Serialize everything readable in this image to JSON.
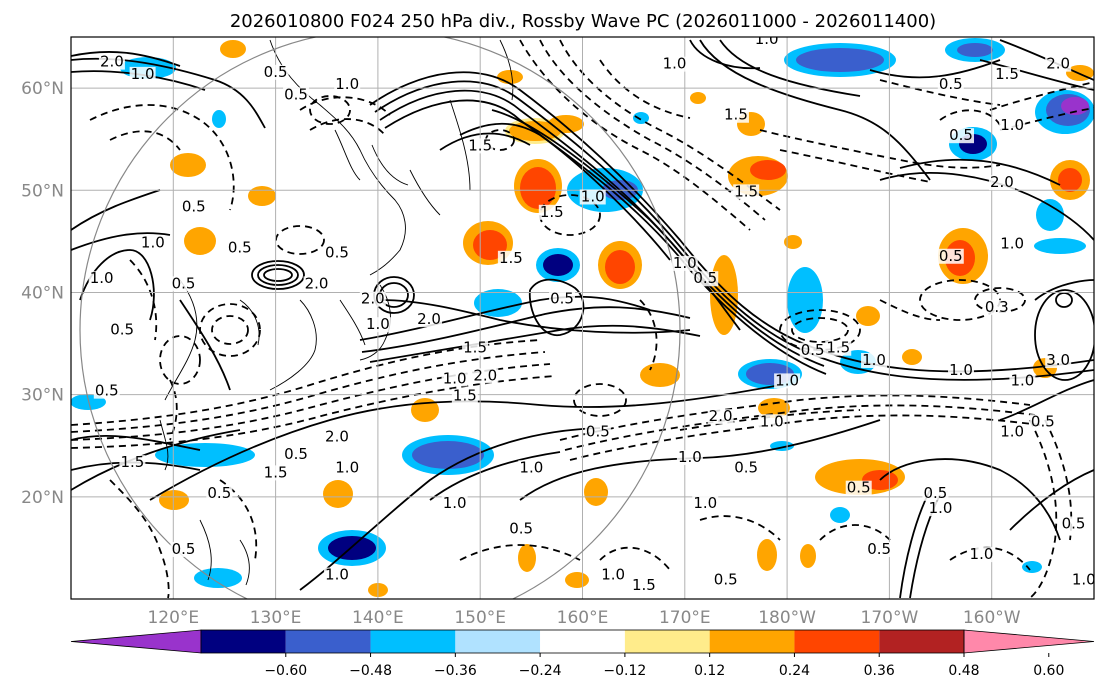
{
  "title": "2026010800 F024 250 hPa div., Rossby Wave PC (2026011000 - 2026011400)",
  "map": {
    "lon_range": [
      110,
      210
    ],
    "lat_range": [
      10,
      65
    ],
    "lon_ticks": [
      120,
      130,
      140,
      150,
      160,
      170,
      180,
      190,
      200
    ],
    "lon_labels": [
      "120°E",
      "130°E",
      "140°E",
      "150°E",
      "160°E",
      "170°E",
      "180°W",
      "170°W",
      "160°W"
    ],
    "lat_ticks": [
      20,
      30,
      40,
      50,
      60
    ],
    "lat_labels": [
      "20°N",
      "30°N",
      "40°N",
      "50°N",
      "60°N"
    ],
    "gridline_color": "#b0b0b0",
    "tick_label_color": "#888888"
  },
  "colorbar": {
    "colors": [
      "#9933cc",
      "#000080",
      "#3a5fcd",
      "#00bfff",
      "#b0e2ff",
      "#ffffff",
      "#ffec8b",
      "#ffa500",
      "#ff4500",
      "#b22222",
      "#ff88aa"
    ],
    "tick_labels": [
      "−0.60",
      "−0.48",
      "−0.36",
      "−0.24",
      "−0.12",
      "0.12",
      "0.24",
      "0.36",
      "0.48",
      "0.60"
    ]
  },
  "contour_labels": [
    {
      "text": "2.0",
      "lon": 114.0,
      "lat": 62.2
    },
    {
      "text": "1.0",
      "lon": 117.0,
      "lat": 61.0
    },
    {
      "text": "0.5",
      "lon": 130.0,
      "lat": 61.2
    },
    {
      "text": "0.5",
      "lon": 132.0,
      "lat": 59.0
    },
    {
      "text": "1.0",
      "lon": 137.0,
      "lat": 60.0
    },
    {
      "text": "1.0",
      "lon": 178.0,
      "lat": 64.4
    },
    {
      "text": "1.0",
      "lon": 169.0,
      "lat": 62.0
    },
    {
      "text": "1.5",
      "lon": 201.5,
      "lat": 61.0
    },
    {
      "text": "2.0",
      "lon": 206.5,
      "lat": 62.0
    },
    {
      "text": "0.5",
      "lon": 196.0,
      "lat": 60.0
    },
    {
      "text": "1.0",
      "lon": 202.0,
      "lat": 56.0
    },
    {
      "text": "0.5",
      "lon": 197.0,
      "lat": 55.0
    },
    {
      "text": "1.5",
      "lon": 175.0,
      "lat": 57.0
    },
    {
      "text": "1.5",
      "lon": 176.0,
      "lat": 49.5
    },
    {
      "text": "2.0",
      "lon": 201.0,
      "lat": 50.4
    },
    {
      "text": "1.0",
      "lon": 202.0,
      "lat": 44.4
    },
    {
      "text": "0.5",
      "lon": 196.0,
      "lat": 43.2
    },
    {
      "text": "0.3",
      "lon": 200.5,
      "lat": 38.2
    },
    {
      "text": "1.5",
      "lon": 150.0,
      "lat": 54.0
    },
    {
      "text": "1.5",
      "lon": 157.0,
      "lat": 47.5
    },
    {
      "text": "1.0",
      "lon": 161.0,
      "lat": 49.0
    },
    {
      "text": "0.5",
      "lon": 158.0,
      "lat": 39.0
    },
    {
      "text": "1.0",
      "lon": 170.0,
      "lat": 42.5
    },
    {
      "text": "0.5",
      "lon": 172.0,
      "lat": 41.0
    },
    {
      "text": "2.0",
      "lon": 139.5,
      "lat": 39.0
    },
    {
      "text": "1.0",
      "lon": 140.0,
      "lat": 36.5
    },
    {
      "text": "2.0",
      "lon": 145.0,
      "lat": 37.0
    },
    {
      "text": "1.5",
      "lon": 149.5,
      "lat": 34.2
    },
    {
      "text": "2.0",
      "lon": 134.0,
      "lat": 40.5
    },
    {
      "text": "0.5",
      "lon": 136.0,
      "lat": 43.5
    },
    {
      "text": "1.5",
      "lon": 153.0,
      "lat": 43.0
    },
    {
      "text": "1.0",
      "lon": 118.0,
      "lat": 44.5
    },
    {
      "text": "0.5",
      "lon": 121.0,
      "lat": 40.5
    },
    {
      "text": "1.0",
      "lon": 113.0,
      "lat": 41.0
    },
    {
      "text": "0.5",
      "lon": 126.5,
      "lat": 44.0
    },
    {
      "text": "0.5",
      "lon": 122.0,
      "lat": 48.0
    },
    {
      "text": "1.0",
      "lon": 147.5,
      "lat": 31.2
    },
    {
      "text": "1.5",
      "lon": 148.5,
      "lat": 29.5
    },
    {
      "text": "2.0",
      "lon": 150.5,
      "lat": 31.5
    },
    {
      "text": "2.0",
      "lon": 136.0,
      "lat": 25.5
    },
    {
      "text": "0.5",
      "lon": 132.0,
      "lat": 23.8
    },
    {
      "text": "1.5",
      "lon": 130.0,
      "lat": 22.0
    },
    {
      "text": "1.0",
      "lon": 137.0,
      "lat": 22.5
    },
    {
      "text": "1.0",
      "lon": 155.0,
      "lat": 22.5
    },
    {
      "text": "1.0",
      "lon": 147.5,
      "lat": 19.0
    },
    {
      "text": "0.5",
      "lon": 124.5,
      "lat": 20.0
    },
    {
      "text": "0.5",
      "lon": 154.0,
      "lat": 16.5
    },
    {
      "text": "0.5",
      "lon": 161.5,
      "lat": 26.0
    },
    {
      "text": "1.0",
      "lon": 170.5,
      "lat": 23.5
    },
    {
      "text": "2.0",
      "lon": 173.5,
      "lat": 27.5
    },
    {
      "text": "1.0",
      "lon": 178.5,
      "lat": 27.0
    },
    {
      "text": "0.5",
      "lon": 176.0,
      "lat": 22.5
    },
    {
      "text": "1.0",
      "lon": 172.0,
      "lat": 19.0
    },
    {
      "text": "1.5",
      "lon": 185.0,
      "lat": 34.2
    },
    {
      "text": "1.0",
      "lon": 188.5,
      "lat": 33.0
    },
    {
      "text": "0.5",
      "lon": 182.5,
      "lat": 34.0
    },
    {
      "text": "1.0",
      "lon": 180.0,
      "lat": 31.0
    },
    {
      "text": "1.0",
      "lon": 197.0,
      "lat": 32.0
    },
    {
      "text": "1.0",
      "lon": 203.0,
      "lat": 31.0
    },
    {
      "text": "3.0",
      "lon": 206.5,
      "lat": 33.0
    },
    {
      "text": "0.5",
      "lon": 205.0,
      "lat": 27.0
    },
    {
      "text": "1.0",
      "lon": 202.0,
      "lat": 26.0
    },
    {
      "text": "0.5",
      "lon": 187.0,
      "lat": 20.5
    },
    {
      "text": "0.5",
      "lon": 194.5,
      "lat": 20.0
    },
    {
      "text": "1.0",
      "lon": 195.0,
      "lat": 18.5
    },
    {
      "text": "0.5",
      "lon": 189.0,
      "lat": 14.5
    },
    {
      "text": "1.0",
      "lon": 199.0,
      "lat": 14.0
    },
    {
      "text": "0.5",
      "lon": 208.0,
      "lat": 17.0
    },
    {
      "text": "1.0",
      "lon": 209.0,
      "lat": 11.5
    },
    {
      "text": "0.5",
      "lon": 174.0,
      "lat": 11.5
    },
    {
      "text": "1.0",
      "lon": 163.0,
      "lat": 12.0
    },
    {
      "text": "1.5",
      "lon": 166.0,
      "lat": 11.0
    },
    {
      "text": "1.0",
      "lon": 136.0,
      "lat": 12.0
    },
    {
      "text": "0.5",
      "lon": 115.0,
      "lat": 36.0
    },
    {
      "text": "0.5",
      "lon": 113.5,
      "lat": 30.0
    },
    {
      "text": "1.5",
      "lon": 116.0,
      "lat": 23.0
    },
    {
      "text": "0.5",
      "lon": 121.0,
      "lat": 14.5
    }
  ]
}
